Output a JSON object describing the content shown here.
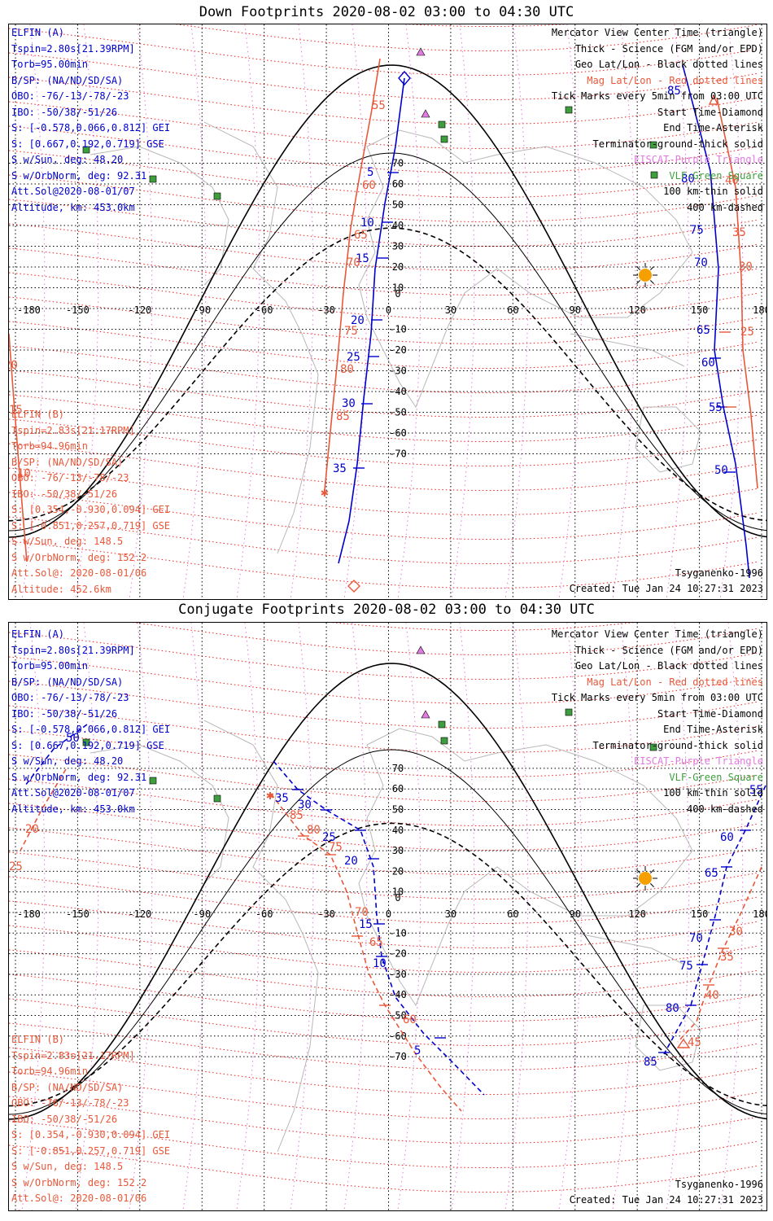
{
  "top": {
    "title": "Down Footprints 2020-08-02 03:00 to 04:30 UTC",
    "elfin_a": [
      "ELFIN (A)",
      "Tspin=2.80s[21.39RPM]",
      "Torb=95.00min",
      "B/SP: (NA/ND/SD/SA)",
      "OBO: -76/-13/-78/-23",
      "IBO: -50/38/-51/26",
      "S: [-0.578,0.066,0.812] GEI",
      "S: [0.667,0.192,0.719] GSE",
      "S w/Sun, deg: 48.20",
      "S w/OrbNorm, deg: 92.31",
      "Att.Sol@2020-08-01/07",
      "Altitude, km: 453.0km"
    ],
    "elfin_b": [
      "ELFIN (B)",
      "Tspin=2.83s[21.17RPM]",
      "Torb=94.96min",
      "B/SP: (NA/ND/SD/SA)",
      "OBO: -76/-13/-78/-23",
      "IBO: -50/38/-51/26",
      "S: [0.354,-0.930,0.094] GEI",
      "S: [-0.851,0.257,0.719] GSE",
      "S w/Sun, deg: 148.5",
      "S w/OrbNorm, deg: 152.2",
      "Att.Sol@: 2020-08-01/06",
      "Altitude: 452.6km"
    ],
    "legend": [
      "Mercator View Center Time (triangle)",
      "Thick - Science (FGM and/or EPD)",
      "Geo Lat/Lon - Black dotted lines",
      "Mag Lat/Lon - Red dotted lines",
      "Tick Marks every 5min from 03:00 UTC",
      "Start Time-Diamond",
      "End Time-Asterisk",
      "Terminator-ground-thick solid",
      "EISCAT-Purple Triangle",
      "VLF-Green Square",
      "100 km-thin solid",
      "400 km-dashed"
    ],
    "model": "Tsyganenko-1996",
    "created": "Created: Tue Jan 24 10:27:31 2023",
    "blue_ticks": [
      "5",
      "10",
      "15",
      "20",
      "25",
      "30",
      "35",
      "85",
      "80",
      "75",
      "70",
      "65",
      "60",
      "55",
      "50"
    ],
    "red_ticks": [
      "55",
      "60",
      "65",
      "70",
      "75",
      "80",
      "85",
      "40",
      "35",
      "30",
      "25",
      "20",
      "15",
      "10"
    ]
  },
  "bottom": {
    "title": "Conjugate Footprints 2020-08-02 03:00 to 04:30 UTC",
    "blue_ticks": [
      "50",
      "35",
      "30",
      "25",
      "20",
      "15",
      "10",
      "5",
      "55",
      "60",
      "65",
      "70",
      "75",
      "80",
      "85"
    ],
    "red_ticks": [
      "85",
      "80",
      "75",
      "70",
      "65",
      "60",
      "20",
      "25",
      "30",
      "35",
      "40",
      "45"
    ]
  },
  "axes": {
    "lon_ticks": [
      "-180",
      "-150",
      "-120",
      "-90",
      "-60",
      "-30",
      "0",
      "30",
      "60",
      "90",
      "120",
      "150",
      "180"
    ],
    "lat_ticks": [
      "70",
      "60",
      "50",
      "40",
      "30",
      "20",
      "10",
      "0",
      "-10",
      "-20",
      "-30",
      "-40",
      "-50",
      "-60",
      "-70"
    ]
  },
  "colors": {
    "blue": "#0000cc",
    "red": "#e8583a",
    "violet": "#e07be0",
    "green": "#3e9e3e",
    "sun": "#f5a000"
  }
}
